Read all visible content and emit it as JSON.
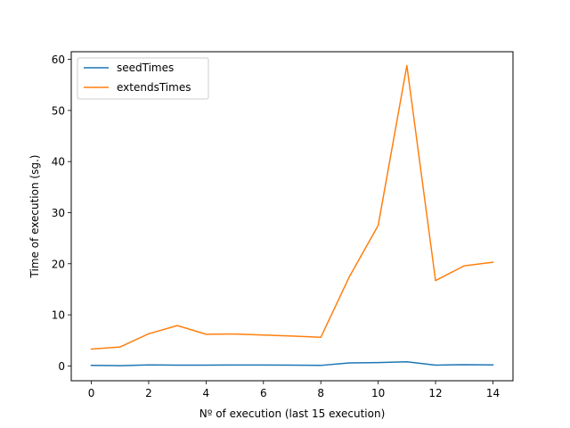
{
  "chart_data": {
    "type": "line",
    "title": "",
    "xlabel": "Nº of execution (last 15 execution)",
    "ylabel": "Time of execution (sg.)",
    "x": [
      0,
      1,
      2,
      3,
      4,
      5,
      6,
      7,
      8,
      9,
      10,
      11,
      12,
      13,
      14
    ],
    "xlim": [
      -0.7,
      14.7
    ],
    "ylim": [
      -2.9,
      61.5
    ],
    "xticks": [
      0,
      2,
      4,
      6,
      8,
      10,
      12,
      14
    ],
    "yticks": [
      0,
      10,
      20,
      30,
      40,
      50,
      60
    ],
    "grid": false,
    "legend_position": "top-left",
    "series": [
      {
        "name": "seedTimes",
        "color": "#1f77b4",
        "values": [
          0.1,
          0.05,
          0.2,
          0.15,
          0.15,
          0.18,
          0.18,
          0.15,
          0.1,
          0.6,
          0.65,
          0.8,
          0.15,
          0.25,
          0.2
        ]
      },
      {
        "name": "extendsTimes",
        "color": "#ff7f0e",
        "values": [
          3.3,
          3.7,
          6.3,
          7.9,
          6.2,
          6.25,
          6.05,
          5.85,
          5.6,
          17.5,
          27.5,
          58.8,
          16.7,
          19.6,
          20.3
        ]
      }
    ]
  }
}
